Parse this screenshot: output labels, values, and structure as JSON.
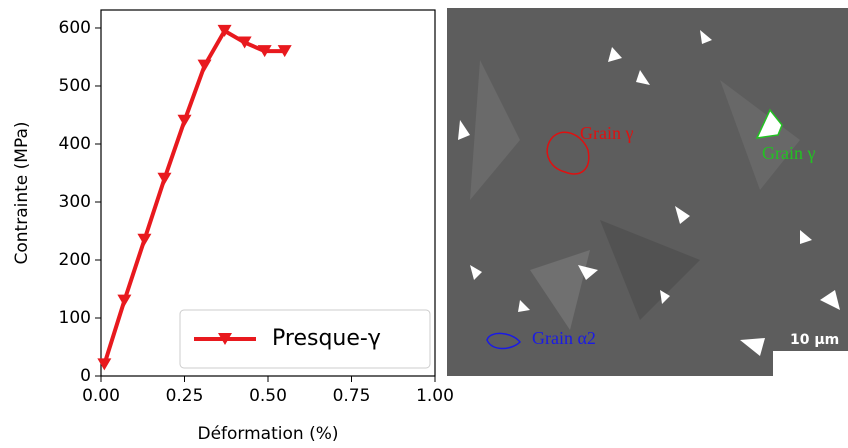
{
  "chart_data": {
    "type": "line",
    "x_label": "Déformation (%)",
    "y_label": "Contrainte (MPa)",
    "xlim": [
      0,
      1
    ],
    "ylim": [
      0,
      631
    ],
    "xticks": [
      {
        "value": 0,
        "label": "0.00"
      },
      0.25,
      {
        "value": 0.5,
        "label": "0.50"
      },
      0.75,
      {
        "value": 1,
        "label": "1.00"
      }
    ],
    "yticks": [
      0,
      100,
      200,
      300,
      400,
      500,
      600
    ],
    "legend": "lower right",
    "series": [
      {
        "name": "Presque-γ",
        "color": "#e8191e",
        "x": [
          0.01,
          0.07,
          0.13,
          0.19,
          0.25,
          0.31,
          0.37,
          0.43,
          0.49,
          0.55
        ],
        "values": [
          20,
          130,
          235,
          340,
          440,
          535,
          595,
          575,
          560,
          560
        ]
      }
    ]
  },
  "image": {
    "labels": [
      {
        "text": "Grain γ",
        "color": "#e01010"
      },
      {
        "text": "Grain γ",
        "color": "#22c322"
      },
      {
        "text": "Grain α2",
        "color": "#1a1ae6"
      }
    ],
    "scale_bar": "10 μm"
  }
}
